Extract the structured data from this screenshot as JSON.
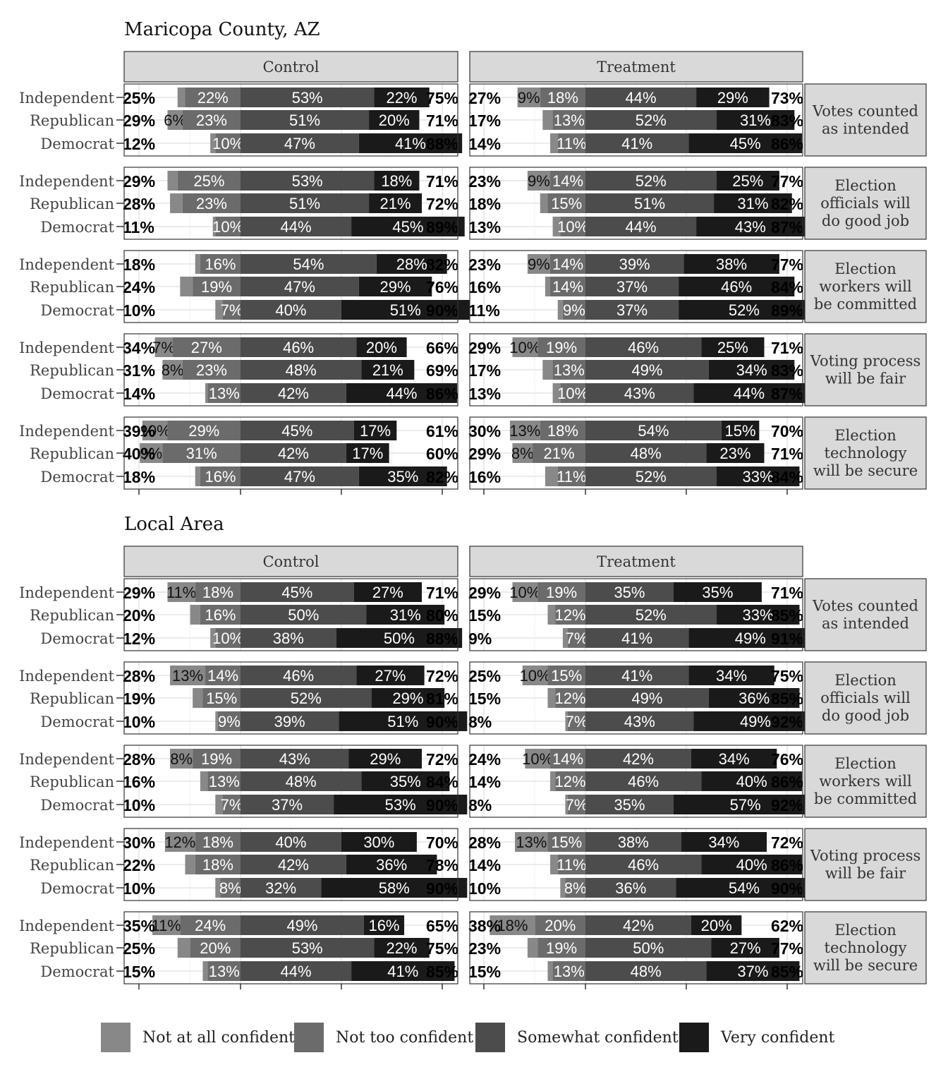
{
  "colors": {
    "not_at_all": "#888888",
    "not_too": "#6b6b6b",
    "somewhat": "#4c4c4c",
    "very": "#1a1a1a",
    "strip_fill": "#d9d9d9",
    "grid": "#ebebeb"
  },
  "legend": [
    "Not at all confident",
    "Not too confident",
    "Somewhat confident",
    "Very confident"
  ],
  "chart_data": {
    "type": "bar",
    "orientation": "horizontal-diverging-stacked",
    "columns": [
      "Control",
      "Treatment"
    ],
    "rows": [
      "Votes counted as intended",
      "Election officials will do good job",
      "Election workers will be committed",
      "Voting process will be fair",
      "Election technology will be secure"
    ],
    "row_label_lines": [
      [
        "Votes counted",
        "as intended"
      ],
      [
        "Election",
        "officials will",
        "do good job"
      ],
      [
        "Election",
        "workers will",
        "be committed"
      ],
      [
        "Voting process",
        "will be fair"
      ],
      [
        "Election",
        "technology",
        "will be secure"
      ]
    ],
    "parties": [
      "Independent",
      "Republican",
      "Democrat"
    ],
    "panels": [
      {
        "title": "Maricopa County, AZ",
        "data": {
          "Control": [
            [
              [
                25,
                "",
                "22%",
                "53%",
                "22%",
                75
              ],
              [
                29,
                "6%",
                "23%",
                "51%",
                "20%",
                71
              ],
              [
                12,
                "",
                "10%",
                "47%",
                "41%",
                88
              ]
            ],
            [
              [
                29,
                "",
                "25%",
                "53%",
                "18%",
                71
              ],
              [
                28,
                "",
                "23%",
                "51%",
                "21%",
                72
              ],
              [
                11,
                "",
                "10%",
                "44%",
                "45%",
                89
              ]
            ],
            [
              [
                18,
                "",
                "16%",
                "54%",
                "28%",
                82
              ],
              [
                24,
                "",
                "19%",
                "47%",
                "29%",
                76
              ],
              [
                10,
                "",
                "7%",
                "40%",
                "51%",
                90
              ]
            ],
            [
              [
                34,
                "7%",
                "27%",
                "46%",
                "20%",
                66
              ],
              [
                31,
                "8%",
                "23%",
                "48%",
                "21%",
                69
              ],
              [
                14,
                "",
                "13%",
                "42%",
                "44%",
                86
              ]
            ],
            [
              [
                39,
                "10%",
                "29%",
                "45%",
                "17%",
                61
              ],
              [
                40,
                "9%",
                "31%",
                "42%",
                "17%",
                60
              ],
              [
                18,
                "",
                "16%",
                "47%",
                "35%",
                82
              ]
            ]
          ],
          "Treatment": [
            [
              [
                27,
                "9%",
                "18%",
                "44%",
                "29%",
                73
              ],
              [
                17,
                "",
                "13%",
                "52%",
                "31%",
                83
              ],
              [
                14,
                "",
                "11%",
                "41%",
                "45%",
                86
              ]
            ],
            [
              [
                23,
                "9%",
                "14%",
                "52%",
                "25%",
                77
              ],
              [
                18,
                "",
                "15%",
                "51%",
                "31%",
                82
              ],
              [
                13,
                "",
                "10%",
                "44%",
                "43%",
                87
              ]
            ],
            [
              [
                23,
                "9%",
                "14%",
                "39%",
                "38%",
                77
              ],
              [
                16,
                "",
                "14%",
                "37%",
                "46%",
                84
              ],
              [
                11,
                "",
                "9%",
                "37%",
                "52%",
                89
              ]
            ],
            [
              [
                29,
                "10%",
                "19%",
                "46%",
                "25%",
                71
              ],
              [
                17,
                "",
                "13%",
                "49%",
                "34%",
                83
              ],
              [
                13,
                "",
                "10%",
                "43%",
                "44%",
                87
              ]
            ],
            [
              [
                30,
                "13%",
                "18%",
                "54%",
                "15%",
                70
              ],
              [
                29,
                "8%",
                "21%",
                "48%",
                "23%",
                71
              ],
              [
                16,
                "",
                "11%",
                "52%",
                "33%",
                84
              ]
            ]
          ]
        }
      },
      {
        "title": "Local Area",
        "data": {
          "Control": [
            [
              [
                29,
                "11%",
                "18%",
                "45%",
                "27%",
                71
              ],
              [
                20,
                "",
                "16%",
                "50%",
                "31%",
                80
              ],
              [
                12,
                "",
                "10%",
                "38%",
                "50%",
                88
              ]
            ],
            [
              [
                28,
                "13%",
                "14%",
                "46%",
                "27%",
                72
              ],
              [
                19,
                "",
                "15%",
                "52%",
                "29%",
                81
              ],
              [
                10,
                "",
                "9%",
                "39%",
                "51%",
                90
              ]
            ],
            [
              [
                28,
                "8%",
                "19%",
                "43%",
                "29%",
                72
              ],
              [
                16,
                "",
                "13%",
                "48%",
                "35%",
                84
              ],
              [
                10,
                "",
                "7%",
                "37%",
                "53%",
                90
              ]
            ],
            [
              [
                30,
                "12%",
                "18%",
                "40%",
                "30%",
                70
              ],
              [
                22,
                "",
                "18%",
                "42%",
                "36%",
                78
              ],
              [
                10,
                "",
                "8%",
                "32%",
                "58%",
                90
              ]
            ],
            [
              [
                35,
                "11%",
                "24%",
                "49%",
                "16%",
                65
              ],
              [
                25,
                "",
                "20%",
                "53%",
                "22%",
                75
              ],
              [
                15,
                "",
                "13%",
                "44%",
                "41%",
                85
              ]
            ]
          ],
          "Treatment": [
            [
              [
                29,
                "10%",
                "19%",
                "35%",
                "35%",
                71
              ],
              [
                15,
                "",
                "12%",
                "52%",
                "33%",
                85
              ],
              [
                9,
                "",
                "7%",
                "41%",
                "49%",
                91
              ]
            ],
            [
              [
                25,
                "10%",
                "15%",
                "41%",
                "34%",
                75
              ],
              [
                15,
                "",
                "12%",
                "49%",
                "36%",
                85
              ],
              [
                8,
                "",
                "7%",
                "43%",
                "49%",
                92
              ]
            ],
            [
              [
                24,
                "10%",
                "14%",
                "42%",
                "34%",
                76
              ],
              [
                14,
                "",
                "12%",
                "46%",
                "40%",
                86
              ],
              [
                8,
                "",
                "7%",
                "35%",
                "57%",
                92
              ]
            ],
            [
              [
                28,
                "13%",
                "15%",
                "38%",
                "34%",
                72
              ],
              [
                14,
                "",
                "11%",
                "46%",
                "40%",
                86
              ],
              [
                10,
                "",
                "8%",
                "36%",
                "54%",
                90
              ]
            ],
            [
              [
                38,
                "18%",
                "20%",
                "42%",
                "20%",
                62
              ],
              [
                23,
                "",
                "19%",
                "50%",
                "27%",
                77
              ],
              [
                15,
                "",
                "13%",
                "48%",
                "37%",
                85
              ]
            ]
          ]
        }
      }
    ]
  }
}
